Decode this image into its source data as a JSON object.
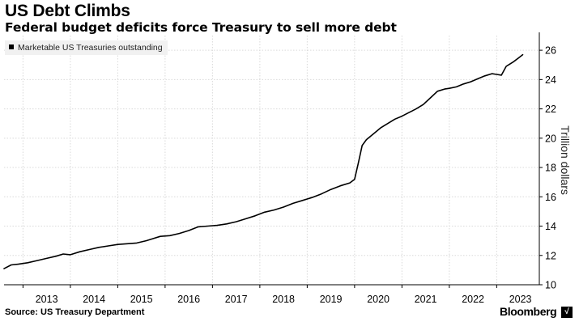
{
  "title": "US Debt Climbs",
  "subtitle": "Federal budget deficits force Treasury to sell more debt",
  "source": "Source: US Treasury Department",
  "brand": "Bloomberg",
  "brand_mark": "",
  "colors": {
    "line": "#000000",
    "grid": "#d9d9d9",
    "legend_bg": "#f1f1f1"
  },
  "chart_data": {
    "type": "line",
    "title": "US Debt Climbs",
    "subtitle": "Federal budget deficits force Treasury to sell more debt",
    "xlabel": "",
    "ylabel": "Trillion dollars",
    "x_ticks": [
      "2013",
      "2014",
      "2015",
      "2016",
      "2017",
      "2018",
      "2019",
      "2020",
      "2021",
      "2022",
      "2023"
    ],
    "y_ticks": [
      10,
      12,
      14,
      16,
      18,
      20,
      22,
      24,
      26
    ],
    "xlim": [
      2012.6,
      2023.9
    ],
    "ylim": [
      10,
      27
    ],
    "y_axis_side": "right",
    "grid": "dotted",
    "legend_position": "top-left",
    "series": [
      {
        "name": "Marketable US Treasuries outstanding",
        "x": [
          2012.6,
          2012.75,
          2012.9,
          2013.1,
          2013.3,
          2013.5,
          2013.7,
          2013.85,
          2014.0,
          2014.2,
          2014.4,
          2014.6,
          2014.8,
          2015.0,
          2015.2,
          2015.4,
          2015.6,
          2015.75,
          2015.9,
          2016.1,
          2016.3,
          2016.5,
          2016.7,
          2016.9,
          2017.1,
          2017.3,
          2017.5,
          2017.7,
          2017.9,
          2018.1,
          2018.3,
          2018.5,
          2018.7,
          2018.9,
          2019.1,
          2019.3,
          2019.5,
          2019.7,
          2019.9,
          2020.0,
          2020.08,
          2020.16,
          2020.25,
          2020.4,
          2020.55,
          2020.7,
          2020.85,
          2021.0,
          2021.15,
          2021.3,
          2021.45,
          2021.6,
          2021.75,
          2021.9,
          2022.0,
          2022.15,
          2022.3,
          2022.45,
          2022.6,
          2022.75,
          2022.9,
          2023.0,
          2023.1,
          2023.2,
          2023.25,
          2023.35,
          2023.45,
          2023.55
        ],
        "values": [
          11.1,
          11.35,
          11.4,
          11.5,
          11.65,
          11.8,
          11.95,
          12.1,
          12.05,
          12.25,
          12.4,
          12.55,
          12.65,
          12.75,
          12.8,
          12.85,
          13.0,
          13.15,
          13.3,
          13.35,
          13.5,
          13.7,
          13.95,
          14.0,
          14.05,
          14.15,
          14.3,
          14.5,
          14.7,
          14.95,
          15.1,
          15.3,
          15.55,
          15.75,
          15.95,
          16.2,
          16.5,
          16.75,
          16.95,
          17.2,
          18.3,
          19.5,
          19.9,
          20.3,
          20.7,
          21.0,
          21.3,
          21.5,
          21.75,
          22.0,
          22.3,
          22.75,
          23.2,
          23.35,
          23.4,
          23.5,
          23.7,
          23.85,
          24.05,
          24.25,
          24.4,
          24.35,
          24.3,
          24.9,
          25.0,
          25.2,
          25.45,
          25.7
        ]
      }
    ]
  }
}
